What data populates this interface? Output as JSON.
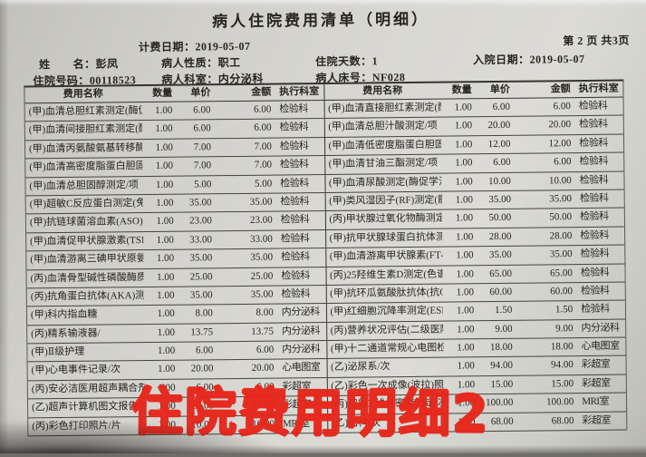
{
  "page": {
    "title": "病人住院费用清单（明细）",
    "page_info": "第 2  页 共3页"
  },
  "meta": {
    "billing_date_label": "计费日期：",
    "billing_date": "2019-05-07",
    "name_label": "姓　　名：",
    "name": "彭凤",
    "patient_type_label": "病人性质：",
    "patient_type": "职工",
    "days_label": "住院天数：",
    "days": "1",
    "admission_date_label": "入院日期：",
    "admission_date": "2019-05-07",
    "admission_no_label": "住院号码：",
    "admission_no": "00118523",
    "patient_dept_label": "病人科室：",
    "patient_dept": "内分泌科",
    "bed_label": "病人床号：",
    "bed": "NF028"
  },
  "table": {
    "headers": [
      "费用名称",
      "数量",
      "单价",
      "金额",
      "执行科室"
    ],
    "left_rows": [
      [
        "(甲)血清总胆红素测定(酶促",
        "1.00",
        "6.00",
        "6.00",
        "检验科"
      ],
      [
        "(甲)血清间接胆红素测定(酶",
        "1.00",
        "6.00",
        "6.00",
        "检验科"
      ],
      [
        "(甲)血清丙氨酸氨基转移酶测",
        "1.00",
        "7.00",
        "7.00",
        "检验科"
      ],
      [
        "(甲)血清高密度脂蛋白胆固醇",
        "1.00",
        "7.00",
        "7.00",
        "检验科"
      ],
      [
        "(甲)血清总胆固醇测定/项",
        "1.00",
        "5.00",
        "5.00",
        "检验科"
      ],
      [
        "(甲)超敏C反应蛋白测定(免疫",
        "1.00",
        "35.00",
        "35.00",
        "检验科"
      ],
      [
        "(甲)抗链球菌溶血素(ASO)测",
        "1.00",
        "23.00",
        "23.00",
        "检验科"
      ],
      [
        "(甲)血清促甲状腺激素(TSH)",
        "1.00",
        "33.00",
        "33.00",
        "检验科"
      ],
      [
        "(甲)血清游离三碘甲状原氨酸",
        "1.00",
        "35.00",
        "35.00",
        "检验科"
      ],
      [
        "(丙)血清骨型碱性磷酸酶质测",
        "1.00",
        "25.00",
        "25.00",
        "检验科"
      ],
      [
        "(丙)抗角蛋白抗体(AKA)测定",
        "1.00",
        "35.00",
        "35.00",
        "检验科"
      ],
      [
        "(甲)科内指血糖",
        "1.00",
        "8.00",
        "8.00",
        "内分泌科"
      ],
      [
        "(丙)精系输液器/",
        "1.00",
        "13.75",
        "13.75",
        "内分泌科"
      ],
      [
        "(甲)Ⅱ级护理",
        "1.00",
        "6.00",
        "6.00",
        "内分泌科"
      ],
      [
        "(甲)心电事件记录/次",
        "1.00",
        "20.00",
        "20.00",
        "心电图室"
      ],
      [
        "(丙)安必洁医用超声耦合剂/",
        "1.00",
        "6.00",
        "6.00",
        "彩超室"
      ],
      [
        "(乙)超声计算机图文报告/次",
        "1.00",
        "10.00",
        "10.00",
        "彩超室"
      ],
      [
        "(丙)彩色打印照片/片",
        "1.00",
        "10.00",
        "10.00",
        "MRI室"
      ]
    ],
    "right_rows": [
      [
        "(甲)血清直接胆红素测定(酶",
        "1.00",
        "6.00",
        "6.00",
        "检验科"
      ],
      [
        "(甲)血清总胆汁酸测定/项",
        "1.00",
        "20.00",
        "20.00",
        "检验科"
      ],
      [
        "(甲)血清低密度脂蛋白胆固醇",
        "1.00",
        "12.00",
        "12.00",
        "检验科"
      ],
      [
        "(甲)血清甘油三酯测定/项",
        "1.00",
        "6.00",
        "6.00",
        "检验科"
      ],
      [
        "(甲)血清尿酸测定(酶促学法",
        "1.00",
        "10.00",
        "10.00",
        "检验科"
      ],
      [
        "(甲)类风湿因子(RF)测定(散",
        "1.00",
        "35.00",
        "35.00",
        "检验科"
      ],
      [
        "(丙)甲状腺过氧化物酶测定/",
        "1.00",
        "50.00",
        "50.00",
        "检验科"
      ],
      [
        "(甲)抗甲状腺球蛋白抗体测定",
        "1.00",
        "28.00",
        "28.00",
        "检验科"
      ],
      [
        "(甲)血清游离甲状腺素(FT4)",
        "1.00",
        "35.00",
        "35.00",
        "检验科"
      ],
      [
        "(丙)25羟维生素D测定(色谱)",
        "1.00",
        "65.00",
        "65.00",
        "检验科"
      ],
      [
        "(甲)抗环瓜氨酸肽抗体(抗CC",
        "1.00",
        "60.00",
        "60.00",
        "检验科"
      ],
      [
        "(甲)红细胞沉降率测定(ESR)",
        "1.00",
        "1.50",
        "1.50",
        "检验科"
      ],
      [
        "(丙)营养状况评估(二级医院",
        "1.00",
        "9.00",
        "9.00",
        "内分泌科"
      ],
      [
        "(甲)十二通道常规心电图检查",
        "1.00",
        "18.00",
        "18.00",
        "心电图室"
      ],
      [
        "(乙)泌尿系/次",
        "1.00",
        "94.00",
        "94.00",
        "彩超室"
      ],
      [
        "(乙)彩色一次成像(波拉)照片",
        "1.00",
        "15.00",
        "15.00",
        "彩超室"
      ],
      [
        "(丙)双能X线骨密度测定/次",
        "1.00",
        "100.00",
        "100.00",
        "MRI室"
      ],
      [
        "(乙)妇科/次",
        "1.00",
        "68.00",
        "68.00",
        "彩超室"
      ]
    ]
  },
  "watermark": {
    "text": "住院费用明细2",
    "color": "#e7261a"
  }
}
